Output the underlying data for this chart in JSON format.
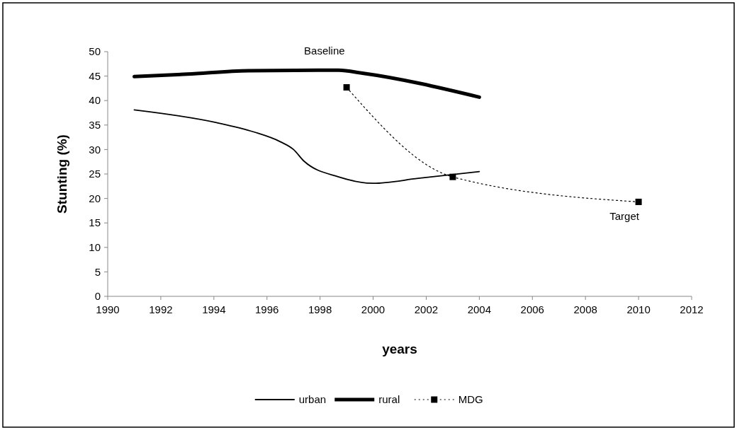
{
  "chart_data": {
    "type": "line",
    "xlabel": "years",
    "ylabel": "Stunting (%)",
    "xlim": [
      1990,
      2012
    ],
    "xticks": [
      1990,
      1992,
      1994,
      1996,
      1998,
      2000,
      2002,
      2004,
      2006,
      2008,
      2010,
      2012
    ],
    "ylim": [
      0,
      50
    ],
    "yticks": [
      0,
      5,
      10,
      15,
      20,
      25,
      30,
      35,
      40,
      45,
      50
    ],
    "grid": false,
    "legend": "bottom",
    "series": [
      {
        "name": "urban",
        "color": "#000000",
        "x": [
          1991,
          1994.1,
          1995.5,
          1996.5,
          1997,
          1997.4,
          1998.7,
          2000,
          2001.7,
          2004
        ],
        "values": [
          38.1,
          35.5,
          33.6,
          31.6,
          30,
          27.6,
          24.4,
          23.1,
          24.1,
          25.5
        ],
        "marker": "none",
        "line_style": "solid"
      },
      {
        "name": "rural",
        "color": "#000000",
        "x": [
          1991,
          1993,
          1995.3,
          1998.7,
          1999.6,
          2004
        ],
        "values": [
          44.9,
          45.4,
          46.1,
          46.2,
          45.6,
          40.7
        ],
        "marker": "none",
        "line_style": "solid"
      },
      {
        "name": "MDG",
        "color": "#000000",
        "x": [
          1999,
          2003,
          2010
        ],
        "values": [
          42.7,
          24.4,
          19.3
        ],
        "marker": "square",
        "line_style": "dotted"
      }
    ],
    "annotations": [
      {
        "text": "Baseline",
        "x": 1998.7,
        "y": 46.2
      },
      {
        "text": "Target",
        "x": 2010,
        "y": 19.3
      }
    ]
  }
}
